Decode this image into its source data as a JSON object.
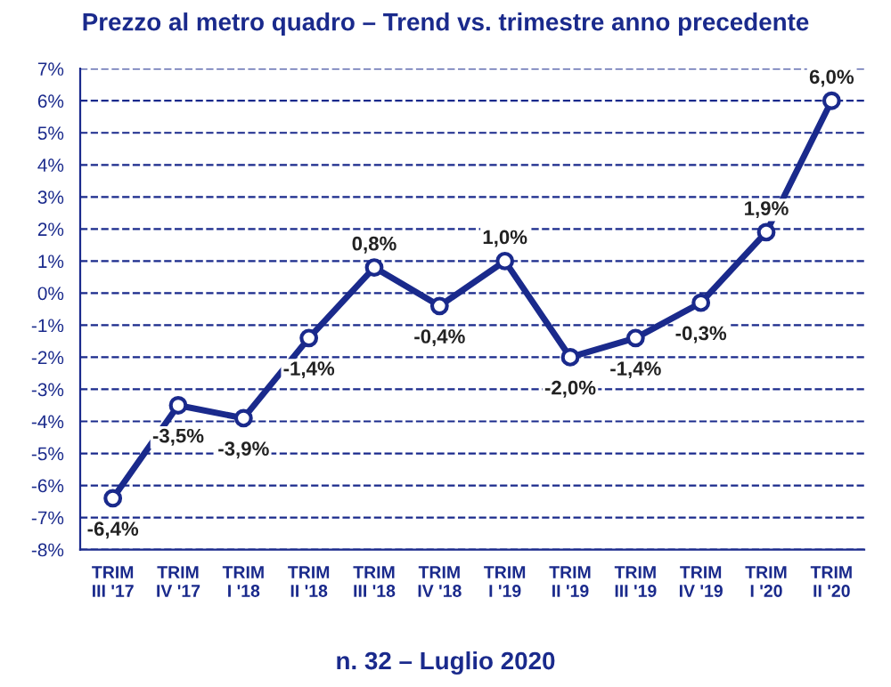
{
  "chart_data": {
    "type": "line",
    "title": "Prezzo al metro quadro – Trend vs. trimestre anno precedente",
    "categories": [
      "TRIM\nIII '17",
      "TRIM\nIV '17",
      "TRIM\nI '18",
      "TRIM\nII '18",
      "TRIM\nIII '18",
      "TRIM\nIV '18",
      "TRIM\nI '19",
      "TRIM\nII '19",
      "TRIM\nIII '19",
      "TRIM\nIV '19",
      "TRIM\nI '20",
      "TRIM\nII '20"
    ],
    "series": [
      {
        "color": "#1a2a8c",
        "values": [
          -6.4,
          -3.5,
          -3.9,
          -1.4,
          0.8,
          -0.4,
          1.0,
          -2.0,
          -1.4,
          -0.3,
          1.9,
          6.0
        ],
        "value_labels": [
          "-6,4%",
          "-3,5%",
          "-3,9%",
          "-1,4%",
          "0,8%",
          "-0,4%",
          "1,0%",
          "-2,0%",
          "-1,4%",
          "-0,3%",
          "1,9%",
          "6,0%"
        ]
      }
    ],
    "ylim": [
      -8,
      7
    ],
    "yticks": [
      {
        "value": -8,
        "label": "-8%"
      },
      {
        "value": -7,
        "label": "-7%"
      },
      {
        "value": -6,
        "label": "-6%"
      },
      {
        "value": -5,
        "label": "-5%"
      },
      {
        "value": -4,
        "label": "-4%"
      },
      {
        "value": -3,
        "label": "-3%"
      },
      {
        "value": -2,
        "label": "-2%"
      },
      {
        "value": -1,
        "label": "-1%"
      },
      {
        "value": 0,
        "label": "0%"
      },
      {
        "value": 1,
        "label": "1%"
      },
      {
        "value": 2,
        "label": "2%"
      },
      {
        "value": 3,
        "label": "3%"
      },
      {
        "value": 4,
        "label": "4%"
      },
      {
        "value": 5,
        "label": "5%"
      },
      {
        "value": 6,
        "label": "6%"
      },
      {
        "value": 7,
        "label": "7%"
      }
    ],
    "grid": "y",
    "marker": "circle",
    "line_style": "solid",
    "annotations": [
      "n. 32 – Luglio 2020"
    ]
  }
}
